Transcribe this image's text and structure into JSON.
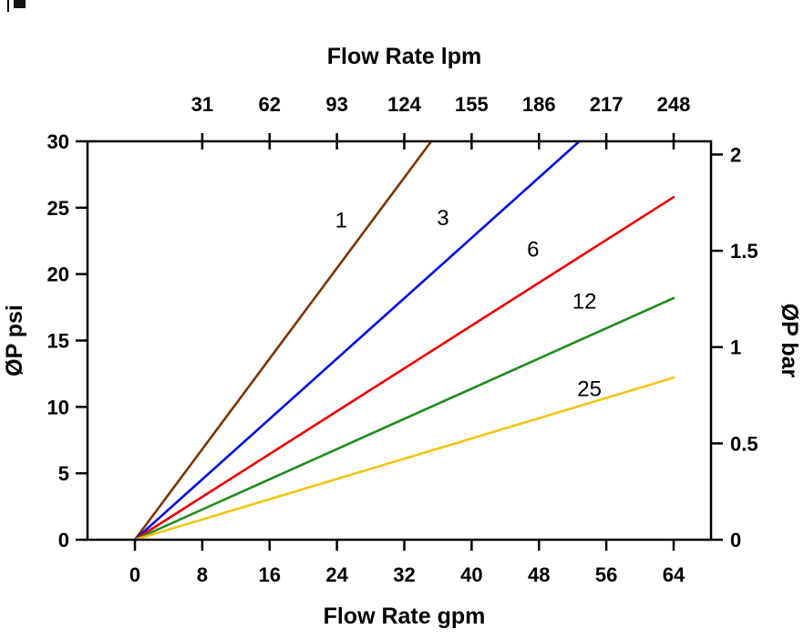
{
  "page": {
    "background": "#ffffff",
    "corner_artifact": "small-black-mark"
  },
  "chart_data": {
    "type": "line",
    "title": "",
    "grid": false,
    "legend": "none",
    "axis_color": "#000000",
    "x_bottom": {
      "label": "Flow Rate gpm",
      "range": [
        0,
        64
      ],
      "ticks": [
        0,
        8,
        16,
        24,
        32,
        40,
        48,
        56,
        64
      ]
    },
    "x_top": {
      "label": "Flow Rate lpm",
      "ticks": [
        {
          "label": "31",
          "gpm": 8
        },
        {
          "label": "62",
          "gpm": 16
        },
        {
          "label": "93",
          "gpm": 24
        },
        {
          "label": "124",
          "gpm": 32
        },
        {
          "label": "155",
          "gpm": 40
        },
        {
          "label": "186",
          "gpm": 48
        },
        {
          "label": "217",
          "gpm": 56
        },
        {
          "label": "248",
          "gpm": 64
        }
      ]
    },
    "y_left": {
      "label": "ØP psi",
      "range": [
        0,
        30
      ],
      "ticks": [
        0,
        5,
        10,
        15,
        20,
        25,
        30
      ]
    },
    "y_right": {
      "label": "ØP bar",
      "psi_per_bar": 14.504,
      "ticks": [
        {
          "label": "0",
          "bar": 0
        },
        {
          "label": "0.5",
          "bar": 0.5
        },
        {
          "label": "1",
          "bar": 1
        },
        {
          "label": "1.5",
          "bar": 1.5
        },
        {
          "label": "2",
          "bar": 2
        }
      ]
    },
    "series": [
      {
        "name": "1",
        "color": "#7F3300",
        "points_gpm_psi": [
          [
            0,
            0
          ],
          [
            35.2,
            30
          ]
        ],
        "label": {
          "text": "1",
          "gpm": 24.5,
          "psi": 23.5
        }
      },
      {
        "name": "3",
        "color": "#0010E0",
        "points_gpm_psi": [
          [
            0,
            0
          ],
          [
            52.8,
            30
          ]
        ],
        "label": {
          "text": "3",
          "gpm": 36.6,
          "psi": 23.7
        }
      },
      {
        "name": "6",
        "color": "#EE0000",
        "points_gpm_psi": [
          [
            0,
            0
          ],
          [
            64,
            25.8
          ]
        ],
        "label": {
          "text": "6",
          "gpm": 47.3,
          "psi": 21.3
        }
      },
      {
        "name": "12",
        "color": "#1E8B1E",
        "points_gpm_psi": [
          [
            0,
            0
          ],
          [
            64,
            18.2
          ]
        ],
        "label": {
          "text": "12",
          "gpm": 53.4,
          "psi": 17.4
        }
      },
      {
        "name": "25",
        "color": "#F2C511",
        "points_gpm_psi": [
          [
            0,
            0
          ],
          [
            64,
            12.2
          ]
        ],
        "label": {
          "text": "25",
          "gpm": 54.0,
          "psi": 10.8
        }
      }
    ]
  }
}
